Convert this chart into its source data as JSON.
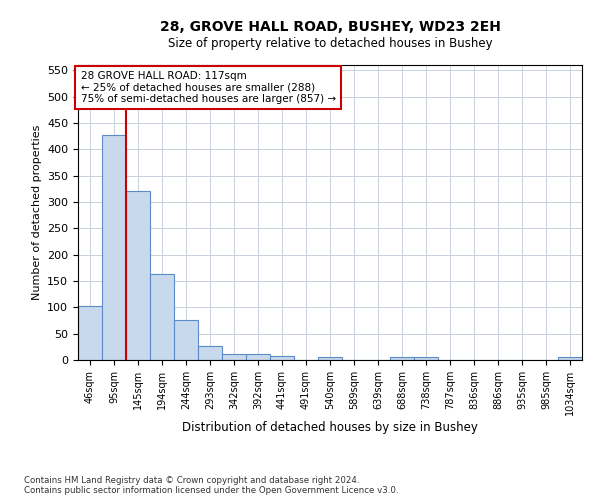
{
  "title1": "28, GROVE HALL ROAD, BUSHEY, WD23 2EH",
  "title2": "Size of property relative to detached houses in Bushey",
  "xlabel": "Distribution of detached houses by size in Bushey",
  "ylabel": "Number of detached properties",
  "categories": [
    "46sqm",
    "95sqm",
    "145sqm",
    "194sqm",
    "244sqm",
    "293sqm",
    "342sqm",
    "392sqm",
    "441sqm",
    "491sqm",
    "540sqm",
    "589sqm",
    "639sqm",
    "688sqm",
    "738sqm",
    "787sqm",
    "836sqm",
    "886sqm",
    "935sqm",
    "985sqm",
    "1034sqm"
  ],
  "values": [
    103,
    427,
    320,
    163,
    75,
    26,
    11,
    11,
    7,
    0,
    5,
    0,
    0,
    5,
    5,
    0,
    0,
    0,
    0,
    0,
    5
  ],
  "bar_color": "#c9d9ed",
  "bar_edge_color": "#5b8cc8",
  "annotation_text": "28 GROVE HALL ROAD: 117sqm\n← 25% of detached houses are smaller (288)\n75% of semi-detached houses are larger (857) →",
  "annotation_box_color": "#ffffff",
  "annotation_box_edge_color": "#cc0000",
  "vline_x": 1.5,
  "vline_color": "#cc0000",
  "ylim": [
    0,
    560
  ],
  "yticks": [
    0,
    50,
    100,
    150,
    200,
    250,
    300,
    350,
    400,
    450,
    500,
    550
  ],
  "footer": "Contains HM Land Registry data © Crown copyright and database right 2024.\nContains public sector information licensed under the Open Government Licence v3.0.",
  "bg_color": "#ffffff",
  "grid_color": "#c8d0dc"
}
